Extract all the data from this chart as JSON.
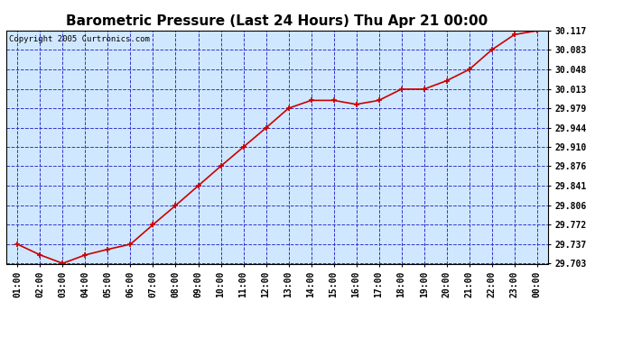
{
  "title": "Barometric Pressure (Last 24 Hours) Thu Apr 21 00:00",
  "copyright": "Copyright 2005 Curtronics.com",
  "x_labels": [
    "01:00",
    "02:00",
    "03:00",
    "04:00",
    "05:00",
    "06:00",
    "07:00",
    "08:00",
    "09:00",
    "10:00",
    "11:00",
    "12:00",
    "13:00",
    "14:00",
    "15:00",
    "16:00",
    "17:00",
    "18:00",
    "19:00",
    "20:00",
    "21:00",
    "22:00",
    "23:00",
    "00:00"
  ],
  "y_values": [
    29.737,
    29.718,
    29.703,
    29.718,
    29.728,
    29.737,
    29.772,
    29.806,
    29.841,
    29.876,
    29.91,
    29.944,
    29.979,
    29.993,
    29.993,
    29.986,
    29.993,
    30.013,
    30.013,
    30.028,
    30.048,
    30.083,
    30.11,
    30.117
  ],
  "ylim_min": 29.703,
  "ylim_max": 30.117,
  "yticks": [
    29.703,
    29.737,
    29.772,
    29.806,
    29.841,
    29.876,
    29.91,
    29.944,
    29.979,
    30.013,
    30.048,
    30.083,
    30.117
  ],
  "line_color": "#cc0000",
  "marker": "+",
  "marker_color": "#cc0000",
  "plot_bg": "#d0e8ff",
  "grid_color": "#3333cc",
  "title_fontsize": 11,
  "tick_fontsize": 7,
  "ylabel_fontsize": 7,
  "copyright_fontsize": 6.5
}
